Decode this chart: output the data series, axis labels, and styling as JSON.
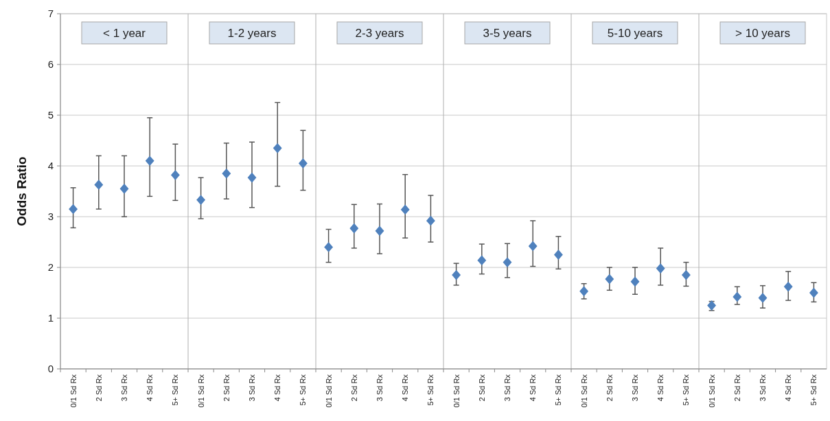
{
  "chart_data": {
    "type": "scatter",
    "ylabel": "Odds Ratio",
    "marker": "diamond",
    "grid": "y",
    "categories": [
      "0/1 Sd Rx",
      "2 Sd Rx",
      "3 Sd Rx",
      "4 Sd Rx",
      "5+ Sd Rx",
      "0/1 Sd Rx",
      "2 Sd Rx",
      "3 Sd Rx",
      "4 Sd Rx",
      "5+ Sd Rx",
      "0/1 Sd Rx",
      "2 Sd Rx",
      "3 Sd Rx",
      "4 Sd Rx",
      "5+ Sd Rx",
      "0/1 Sd Rx",
      "2 Sd Rx",
      "3 Sd Rx",
      "4 Sd Rx",
      "5+ Sd Rx",
      "0/1 Sd Rx",
      "2 Sd Rx",
      "3 Sd Rx",
      "4 Sd Rx",
      "5+ Sd Rx",
      "0/1 Sd Rx",
      "2 Sd Rx",
      "3 Sd Rx",
      "4 Sd Rx",
      "5+ Sd Rx"
    ],
    "series": [
      {
        "color": "#4f81bd",
        "values": [
          3.15,
          3.63,
          3.55,
          4.1,
          3.82,
          3.33,
          3.85,
          3.77,
          4.35,
          4.05,
          2.4,
          2.77,
          2.72,
          3.14,
          2.92,
          1.85,
          2.14,
          2.1,
          2.42,
          2.25,
          1.53,
          1.77,
          1.72,
          1.98,
          1.85,
          1.25,
          1.42,
          1.4,
          1.62,
          1.5
        ],
        "errors": [
          [
            2.78,
            3.57
          ],
          [
            3.15,
            4.2
          ],
          [
            3.0,
            4.2
          ],
          [
            3.4,
            4.95
          ],
          [
            3.32,
            4.43
          ],
          [
            2.96,
            3.77
          ],
          [
            3.35,
            4.45
          ],
          [
            3.18,
            4.47
          ],
          [
            3.6,
            5.25
          ],
          [
            3.52,
            4.7
          ],
          [
            2.1,
            2.75
          ],
          [
            2.38,
            3.24
          ],
          [
            2.27,
            3.25
          ],
          [
            2.58,
            3.83
          ],
          [
            2.5,
            3.42
          ],
          [
            1.65,
            2.08
          ],
          [
            1.87,
            2.46
          ],
          [
            1.8,
            2.47
          ],
          [
            2.02,
            2.92
          ],
          [
            1.97,
            2.61
          ],
          [
            1.38,
            1.68
          ],
          [
            1.55,
            2.0
          ],
          [
            1.47,
            2.0
          ],
          [
            1.65,
            2.38
          ],
          [
            1.63,
            2.1
          ],
          [
            1.15,
            1.33
          ],
          [
            1.27,
            1.62
          ],
          [
            1.2,
            1.64
          ],
          [
            1.35,
            1.92
          ],
          [
            1.32,
            1.7
          ]
        ]
      }
    ],
    "ylim": [
      0,
      7
    ],
    "yticks": [
      0,
      1,
      2,
      3,
      4,
      5,
      6,
      7
    ],
    "annotations": [
      "< 1 year",
      "1-2 years",
      "2-3 years",
      "3-5 years",
      "5-10 years",
      "> 10  years"
    ]
  }
}
